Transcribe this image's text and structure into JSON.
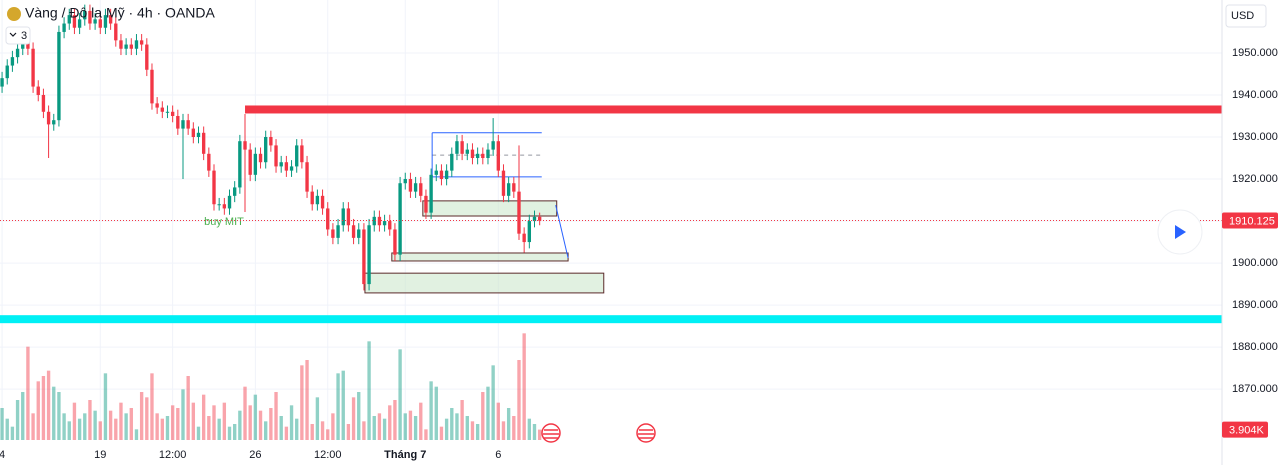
{
  "chart_data": {
    "type": "candlestick",
    "title": "Vàng / Đô la Mỹ · 4h · OANDA",
    "legend_toggle": "3",
    "currency": "USD",
    "open": [
      1942,
      1944,
      1947,
      1949,
      1951,
      1953,
      1951,
      1942,
      1940,
      1936,
      1933,
      1934,
      1955,
      1957,
      1959,
      1956,
      1958,
      1960,
      1957,
      1958,
      1956,
      1959,
      1957,
      1953,
      1951,
      1952,
      1951,
      1953,
      1952,
      1946,
      1938,
      1937,
      1936,
      1936,
      1935,
      1932,
      1934,
      1932,
      1930,
      1931,
      1926,
      1922,
      1914,
      1914,
      1913,
      1916,
      1918,
      1929,
      1927,
      1921,
      1926,
      1924,
      1930,
      1928,
      1923,
      1924,
      1922,
      1923,
      1928,
      1924,
      1917,
      1914,
      1916,
      1913,
      1908,
      1906,
      1909,
      1913,
      1909,
      1906,
      1908,
      1895,
      1909,
      1911,
      1909,
      1910,
      1908,
      1902,
      1919,
      1920,
      1917,
      1919,
      1916,
      1912,
      1921,
      1922,
      1920,
      1922,
      1926,
      1929,
      1926,
      1927,
      1925,
      1926,
      1925,
      1927,
      1929,
      1922,
      1916,
      1919,
      1917,
      1907,
      1905,
      1910,
      1911
    ],
    "high": [
      1945.5,
      1948.5,
      1950.5,
      1952.5,
      1954.5,
      1954.5,
      1952.5,
      1943.5,
      1941.5,
      1937.5,
      1935.5,
      1956.5,
      1958.5,
      1960.5,
      1960.5,
      1959.5,
      1961.5,
      1961.5,
      1959.5,
      1959.5,
      1960.5,
      1960.5,
      1958.5,
      1954.5,
      1953.5,
      1953.5,
      1954.5,
      1954.5,
      1953.5,
      1947.5,
      1939.5,
      1938.5,
      1937.5,
      1937.5,
      1936.5,
      1935.5,
      1935.5,
      1933.5,
      1932.5,
      1932.5,
      1927.5,
      1923.5,
      1915.5,
      1915.5,
      1917.5,
      1919.5,
      1930.5,
      1930.5,
      1928.5,
      1927.5,
      1927.5,
      1931.5,
      1931.5,
      1929.5,
      1925.5,
      1925.5,
      1924.5,
      1929.5,
      1929.5,
      1925.5,
      1918.5,
      1917.5,
      1917.5,
      1914.5,
      1909.5,
      1910.5,
      1914.5,
      1914.5,
      1910.5,
      1909.5,
      1909.5,
      1910.5,
      1912.5,
      1912.5,
      1911.5,
      1911.5,
      1909.5,
      1920.5,
      1921.5,
      1921.5,
      1920.5,
      1920.5,
      1917.5,
      1922.5,
      1923.5,
      1923.5,
      1923.5,
      1927.5,
      1930.5,
      1930.5,
      1928.5,
      1928.5,
      1927.5,
      1927.5,
      1928.5,
      1934.5,
      1930.5,
      1923.5,
      1920.5,
      1920.5,
      1928,
      1908.5,
      1911.5,
      1912.5,
      1912
    ],
    "low": [
      1940.5,
      1942.5,
      1945.5,
      1947.5,
      1949.5,
      1949.5,
      1940.5,
      1938.5,
      1934.5,
      1925,
      1931.5,
      1932.5,
      1953.5,
      1955.5,
      1954.5,
      1954.5,
      1956.5,
      1955.5,
      1955.5,
      1954.5,
      1954.5,
      1955.5,
      1951.5,
      1949.5,
      1949.5,
      1949.5,
      1949.5,
      1950.5,
      1944.5,
      1936.5,
      1935.5,
      1934.5,
      1934.5,
      1933.5,
      1930.5,
      1920,
      1930.5,
      1928.5,
      1928.5,
      1924.5,
      1920.5,
      1912.5,
      1912.5,
      1911.5,
      1911.5,
      1914.5,
      1916.5,
      1925.5,
      1919.5,
      1919.5,
      1922.5,
      1922.5,
      1926.5,
      1921.5,
      1921.5,
      1920.5,
      1920.5,
      1921.5,
      1922.5,
      1915.5,
      1912.5,
      1912.5,
      1911.5,
      1906.5,
      1904.5,
      1904.5,
      1907.5,
      1907.5,
      1904.5,
      1904.5,
      1893.5,
      1893.5,
      1907.5,
      1907.5,
      1907.5,
      1906.5,
      1900.5,
      1900.5,
      1917.5,
      1915.5,
      1915.5,
      1914.5,
      1910.5,
      1910.5,
      1919.5,
      1918.5,
      1918.5,
      1920.5,
      1924.5,
      1924.5,
      1924.5,
      1923.5,
      1923.5,
      1923.5,
      1923.5,
      1925.5,
      1920.5,
      1914.5,
      1914.5,
      1915.5,
      1905.5,
      1902.5,
      1903.5,
      1908.5,
      1909
    ],
    "close": [
      1944,
      1947,
      1949,
      1951,
      1953,
      1951,
      1942,
      1940,
      1936,
      1933,
      1934,
      1955,
      1957,
      1959,
      1956,
      1958,
      1960,
      1957,
      1958,
      1956,
      1959,
      1957,
      1953,
      1951,
      1952,
      1951,
      1953,
      1952,
      1946,
      1938,
      1937,
      1936,
      1936,
      1935,
      1932,
      1934,
      1932,
      1930,
      1931,
      1926,
      1922,
      1914,
      1914,
      1913,
      1916,
      1918,
      1929,
      1927,
      1921,
      1926,
      1924,
      1930,
      1928,
      1923,
      1924,
      1922,
      1923,
      1928,
      1924,
      1917,
      1914,
      1916,
      1913,
      1908,
      1906,
      1909,
      1913,
      1909,
      1906,
      1908,
      1895,
      1909,
      1911,
      1909,
      1910,
      1908,
      1902,
      1919,
      1920,
      1917,
      1919,
      1916,
      1912,
      1921,
      1922,
      1920,
      1922,
      1926,
      1929,
      1926,
      1927,
      1925,
      1926,
      1925,
      1927,
      1929,
      1922,
      1916,
      1919,
      1917,
      1907,
      1905,
      1910,
      1911,
      1910.1
    ],
    "up_color": "#089981",
    "down_color": "#f23645",
    "volume": [
      12000,
      8000,
      5000,
      15000,
      18000,
      35000,
      10000,
      22000,
      24000,
      26000,
      20000,
      18000,
      10000,
      7000,
      14000,
      8000,
      10000,
      15000,
      11000,
      7000,
      25000,
      11000,
      8000,
      14000,
      10000,
      12000,
      4000,
      18000,
      16000,
      25000,
      10000,
      8000,
      9000,
      13000,
      12000,
      19000,
      24000,
      14000,
      5000,
      17000,
      9000,
      13000,
      8000,
      14000,
      5000,
      6000,
      11000,
      20000,
      13000,
      17000,
      11000,
      7000,
      12000,
      18000,
      9000,
      5000,
      13000,
      8000,
      28000,
      30000,
      6000,
      16000,
      7000,
      4000,
      10000,
      25000,
      26000,
      6000,
      16000,
      18000,
      7000,
      37000,
      9000,
      10000,
      8000,
      13000,
      15000,
      34000,
      10000,
      11000,
      9000,
      14000,
      4000,
      22000,
      20000,
      5000,
      8000,
      12000,
      10000,
      15000,
      9000,
      7000,
      6000,
      18000,
      20000,
      28000,
      14000,
      7000,
      12000,
      9000,
      30000,
      40000,
      8000,
      6000,
      3904
    ],
    "volume_ylim": [
      0,
      45000
    ],
    "volume_label": "3.904K",
    "xlim": [
      -0.4,
      236
    ],
    "xticks": [
      {
        "value": 0,
        "label": "4"
      },
      {
        "value": 19,
        "label": "19"
      },
      {
        "value": 33,
        "label": "12:00"
      },
      {
        "value": 49,
        "label": "26"
      },
      {
        "value": 63,
        "label": "12:00"
      },
      {
        "value": 78,
        "label": "Tháng 7"
      },
      {
        "value": 96,
        "label": "6"
      }
    ],
    "ylim": [
      1857.9,
      1962.6
    ],
    "yticks": [
      {
        "value": 1870,
        "label": "1870.000"
      },
      {
        "value": 1880,
        "label": "1880.000"
      },
      {
        "value": 1890,
        "label": "1890.000"
      },
      {
        "value": 1900,
        "label": "1900.000"
      },
      {
        "value": 1910,
        "label": "1910.000"
      },
      {
        "value": 1920,
        "label": "1920.000"
      },
      {
        "value": 1930,
        "label": "1930.000"
      },
      {
        "value": 1940,
        "label": "1940.000"
      },
      {
        "value": 1950,
        "label": "1950.000"
      }
    ],
    "grid": true,
    "last_price": 1910.125,
    "levels": [
      {
        "x0": 47,
        "from": 1935.6,
        "to": 1937.5,
        "color": "#f23645"
      },
      {
        "x0": -0.4,
        "from": 1885.7,
        "to": 1887.6,
        "color": "#00f0f5"
      }
    ],
    "zones": [
      {
        "x0": 81.4,
        "x1": 107.3,
        "low": 1911.2,
        "high": 1914.8
      },
      {
        "x0": 75.4,
        "x1": 109.5,
        "low": 1900.5,
        "high": 1902.4
      },
      {
        "x0": 70.2,
        "x1": 116.4,
        "low": 1892.9,
        "high": 1897.6
      }
    ],
    "range": {
      "x0": 83.2,
      "x1": 104.4,
      "low": 1920.5,
      "high": 1931,
      "mid": 1925.7
    },
    "arrow": {
      "x0": 107.1,
      "y0": 1913.8,
      "x1": 109.5,
      "y1": 1901.2
    },
    "annotation": "buy MIT"
  }
}
